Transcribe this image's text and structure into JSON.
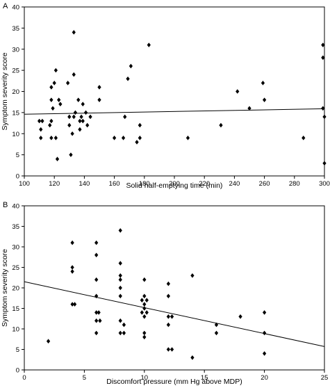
{
  "chart_data": [
    {
      "type": "scatter",
      "panel_label": "A",
      "title": "",
      "xlabel": "Solid half-emptying time (min)",
      "ylabel": "Symptom severity score",
      "xlim": [
        100,
        300
      ],
      "ylim": [
        0,
        40
      ],
      "xticks": [
        100,
        120,
        140,
        160,
        180,
        200,
        220,
        240,
        260,
        280,
        300
      ],
      "yticks": [
        0,
        5,
        10,
        15,
        20,
        25,
        30,
        35,
        40
      ],
      "grid": false,
      "fit_line": {
        "x": [
          100,
          300
        ],
        "y": [
          14.6,
          15.9
        ]
      },
      "points": [
        {
          "x": 110,
          "y": 13
        },
        {
          "x": 111,
          "y": 11
        },
        {
          "x": 111,
          "y": 9
        },
        {
          "x": 112,
          "y": 13
        },
        {
          "x": 117,
          "y": 12
        },
        {
          "x": 118,
          "y": 9
        },
        {
          "x": 118,
          "y": 13
        },
        {
          "x": 118,
          "y": 18
        },
        {
          "x": 118,
          "y": 21
        },
        {
          "x": 119,
          "y": 16
        },
        {
          "x": 120,
          "y": 22
        },
        {
          "x": 121,
          "y": 9
        },
        {
          "x": 121,
          "y": 25
        },
        {
          "x": 122,
          "y": 4
        },
        {
          "x": 123,
          "y": 18
        },
        {
          "x": 124,
          "y": 17
        },
        {
          "x": 129,
          "y": 22
        },
        {
          "x": 130,
          "y": 14
        },
        {
          "x": 130,
          "y": 12
        },
        {
          "x": 131,
          "y": 5
        },
        {
          "x": 132,
          "y": 10
        },
        {
          "x": 133,
          "y": 24
        },
        {
          "x": 133,
          "y": 34
        },
        {
          "x": 133,
          "y": 14
        },
        {
          "x": 134,
          "y": 15
        },
        {
          "x": 136,
          "y": 18
        },
        {
          "x": 137,
          "y": 11
        },
        {
          "x": 137,
          "y": 13
        },
        {
          "x": 138,
          "y": 14
        },
        {
          "x": 139,
          "y": 13
        },
        {
          "x": 139,
          "y": 17
        },
        {
          "x": 141,
          "y": 15
        },
        {
          "x": 142,
          "y": 12
        },
        {
          "x": 144,
          "y": 14
        },
        {
          "x": 150,
          "y": 21
        },
        {
          "x": 150,
          "y": 18
        },
        {
          "x": 160,
          "y": 9
        },
        {
          "x": 166,
          "y": 9
        },
        {
          "x": 167,
          "y": 14
        },
        {
          "x": 169,
          "y": 23
        },
        {
          "x": 171,
          "y": 26
        },
        {
          "x": 175,
          "y": 8
        },
        {
          "x": 177,
          "y": 12
        },
        {
          "x": 177,
          "y": 9
        },
        {
          "x": 183,
          "y": 31
        },
        {
          "x": 209,
          "y": 9
        },
        {
          "x": 231,
          "y": 12
        },
        {
          "x": 242,
          "y": 20
        },
        {
          "x": 250,
          "y": 16
        },
        {
          "x": 259,
          "y": 22
        },
        {
          "x": 260,
          "y": 18
        },
        {
          "x": 286,
          "y": 9
        },
        {
          "x": 299,
          "y": 31
        },
        {
          "x": 299,
          "y": 28
        },
        {
          "x": 299,
          "y": 16
        },
        {
          "x": 300,
          "y": 14
        },
        {
          "x": 300,
          "y": 3
        }
      ]
    },
    {
      "type": "scatter",
      "panel_label": "B",
      "title": "",
      "xlabel": "Discomfort pressure (mm Hg above MDP)",
      "ylabel": "Symptom severity score",
      "xlim": [
        0,
        25
      ],
      "ylim": [
        0,
        40
      ],
      "xticks": [
        0,
        5,
        10,
        15,
        20,
        25
      ],
      "yticks": [
        0,
        5,
        10,
        15,
        20,
        25,
        30,
        35,
        40
      ],
      "grid": false,
      "fit_line": {
        "x": [
          0,
          25
        ],
        "y": [
          21.5,
          5.7
        ]
      },
      "points": [
        {
          "x": 2,
          "y": 7
        },
        {
          "x": 4,
          "y": 31
        },
        {
          "x": 4,
          "y": 25
        },
        {
          "x": 4,
          "y": 24
        },
        {
          "x": 4,
          "y": 16
        },
        {
          "x": 4.2,
          "y": 16
        },
        {
          "x": 6,
          "y": 31
        },
        {
          "x": 6,
          "y": 28
        },
        {
          "x": 6,
          "y": 22
        },
        {
          "x": 6,
          "y": 18
        },
        {
          "x": 6,
          "y": 14
        },
        {
          "x": 6.2,
          "y": 14
        },
        {
          "x": 6,
          "y": 12
        },
        {
          "x": 6.3,
          "y": 12
        },
        {
          "x": 6,
          "y": 9
        },
        {
          "x": 8,
          "y": 34
        },
        {
          "x": 8,
          "y": 26
        },
        {
          "x": 8,
          "y": 23
        },
        {
          "x": 8,
          "y": 22
        },
        {
          "x": 8,
          "y": 20
        },
        {
          "x": 8,
          "y": 18
        },
        {
          "x": 8,
          "y": 12
        },
        {
          "x": 8.3,
          "y": 11
        },
        {
          "x": 8,
          "y": 9
        },
        {
          "x": 8.3,
          "y": 9
        },
        {
          "x": 10,
          "y": 22
        },
        {
          "x": 10,
          "y": 18
        },
        {
          "x": 10.2,
          "y": 17
        },
        {
          "x": 9.8,
          "y": 17
        },
        {
          "x": 10,
          "y": 16
        },
        {
          "x": 10,
          "y": 15
        },
        {
          "x": 9.8,
          "y": 14
        },
        {
          "x": 10.2,
          "y": 14
        },
        {
          "x": 10,
          "y": 13
        },
        {
          "x": 10,
          "y": 9
        },
        {
          "x": 10,
          "y": 8
        },
        {
          "x": 12,
          "y": 21
        },
        {
          "x": 12,
          "y": 18
        },
        {
          "x": 12,
          "y": 13
        },
        {
          "x": 12.3,
          "y": 13
        },
        {
          "x": 12,
          "y": 11
        },
        {
          "x": 12,
          "y": 5
        },
        {
          "x": 12.3,
          "y": 5
        },
        {
          "x": 14,
          "y": 23
        },
        {
          "x": 14,
          "y": 3
        },
        {
          "x": 16,
          "y": 11
        },
        {
          "x": 16,
          "y": 9
        },
        {
          "x": 18,
          "y": 13
        },
        {
          "x": 20,
          "y": 14
        },
        {
          "x": 20,
          "y": 9
        },
        {
          "x": 20,
          "y": 4
        }
      ]
    }
  ]
}
